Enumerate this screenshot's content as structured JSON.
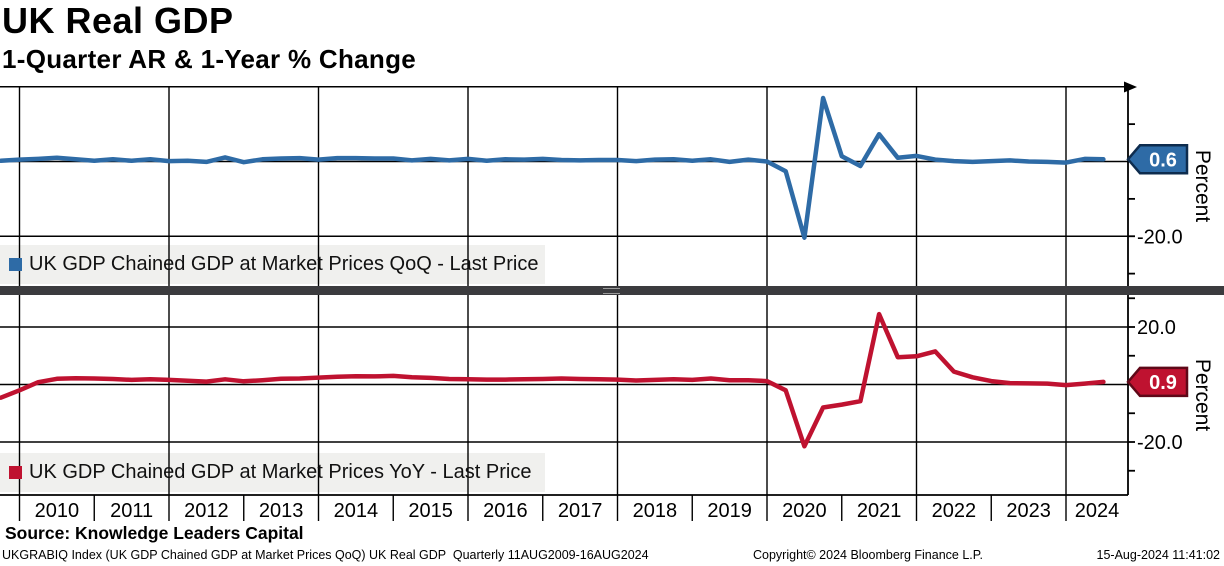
{
  "header": {
    "title": "UK Real GDP",
    "subtitle": "1-Quarter AR & 1-Year % Change"
  },
  "right_axis_label": "Percent",
  "source_line": "Source: Knowledge Leaders Capital",
  "footer": {
    "left": "UKGRABIQ Index (UK GDP Chained GDP at Market Prices QoQ) UK Real GDP  Quarterly 11AUG2009-16AUG2024",
    "center": "Copyright© 2024 Bloomberg Finance L.P.",
    "right": "15-Aug-2024 11:41:02"
  },
  "colors": {
    "qoq": "#2e6ba6",
    "qoq_tag_border": "#0e2c4e",
    "yoy": "#bf1230",
    "yoy_tag_border": "#5f0818",
    "grid": "#000000",
    "legend_bg": "#f0f0ee",
    "separator": "#3b3b3e"
  },
  "x_axis": {
    "year_labels": [
      "2010",
      "2011",
      "2012",
      "2013",
      "2014",
      "2015",
      "2016",
      "2017",
      "2018",
      "2019",
      "2020",
      "2021",
      "2022",
      "2023",
      "2024"
    ],
    "range_note": "Quarterly 11AUG2009-16AUG2024"
  },
  "chart_data": [
    {
      "type": "line",
      "panel": "top",
      "name": "UK GDP Chained GDP at Market Prices QoQ - Last Price",
      "ylabel": "Percent",
      "last_price": 0.6,
      "last_price_label": "0.6",
      "ylim": [
        -33,
        20.5
      ],
      "gridlines": [
        20,
        0,
        -20
      ],
      "ticks": [
        10,
        0,
        -10,
        -20,
        -30
      ],
      "labeled_ticks": [
        {
          "v": -20,
          "label": "-20.0"
        }
      ],
      "start_quarter": "2009Q3",
      "start_t": 2009.75,
      "values": [
        0.2,
        0.5,
        0.7,
        1.0,
        0.6,
        0.2,
        0.6,
        0.2,
        0.6,
        0.1,
        0.2,
        -0.1,
        1.1,
        -0.2,
        0.6,
        0.8,
        0.9,
        0.5,
        0.9,
        0.9,
        0.8,
        0.8,
        0.3,
        0.7,
        0.3,
        0.7,
        0.2,
        0.6,
        0.5,
        0.7,
        0.4,
        0.3,
        0.4,
        0.4,
        0.1,
        0.5,
        0.6,
        0.2,
        0.6,
        -0.1,
        0.5,
        0.0,
        -2.6,
        -20.4,
        17.0,
        1.4,
        -1.2,
        7.3,
        1.0,
        1.5,
        0.5,
        0.1,
        -0.1,
        0.1,
        0.3,
        0.0,
        -0.1,
        -0.3,
        0.7,
        0.6
      ]
    },
    {
      "type": "line",
      "panel": "bottom",
      "name": "UK GDP Chained GDP at Market Prices YoY - Last Price",
      "ylabel": "Percent",
      "last_price": 0.9,
      "last_price_label": "0.9",
      "ylim": [
        -38.5,
        31
      ],
      "gridlines": [
        20,
        0,
        -20
      ],
      "ticks": [
        30,
        20,
        10,
        0,
        -10,
        -20,
        -30
      ],
      "labeled_ticks": [
        {
          "v": 20,
          "label": "20.0"
        },
        {
          "v": -20,
          "label": "-20.0"
        }
      ],
      "start_quarter": "2009Q3",
      "start_t": 2009.75,
      "values": [
        -4.6,
        -2.0,
        0.8,
        2.0,
        2.2,
        2.1,
        1.9,
        1.6,
        1.8,
        1.6,
        1.3,
        1.0,
        1.8,
        1.1,
        1.5,
        2.0,
        2.1,
        2.4,
        2.7,
        2.9,
        2.8,
        3.0,
        2.5,
        2.3,
        1.9,
        1.8,
        1.7,
        1.7,
        1.8,
        1.9,
        2.1,
        1.9,
        1.8,
        1.7,
        1.4,
        1.6,
        1.8,
        1.6,
        2.1,
        1.5,
        1.5,
        1.2,
        -2.0,
        -21.5,
        -8.0,
        -7.0,
        -5.8,
        24.5,
        9.5,
        9.8,
        11.5,
        4.5,
        2.5,
        1.2,
        0.5,
        0.4,
        0.3,
        -0.2,
        0.3,
        0.9
      ]
    }
  ]
}
